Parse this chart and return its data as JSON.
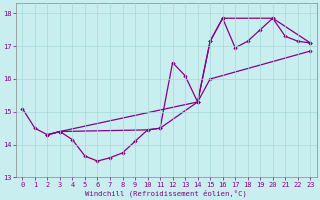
{
  "xlabel": "Windchill (Refroidissement éolien,°C)",
  "background_color": "#c8eef0",
  "line_color": "#880088",
  "xlim": [
    -0.5,
    23.5
  ],
  "ylim": [
    13.0,
    18.3
  ],
  "yticks": [
    13,
    14,
    15,
    16,
    17,
    18
  ],
  "xticks": [
    0,
    1,
    2,
    3,
    4,
    5,
    6,
    7,
    8,
    9,
    10,
    11,
    12,
    13,
    14,
    15,
    16,
    17,
    18,
    19,
    20,
    21,
    22,
    23
  ],
  "curve_main_x": [
    0,
    1,
    2,
    3,
    4,
    5,
    6,
    7,
    8,
    9,
    10,
    11,
    12,
    13,
    14,
    15,
    16,
    17,
    18,
    19,
    20,
    21,
    22,
    23
  ],
  "curve_main_y": [
    15.1,
    14.5,
    14.3,
    14.4,
    14.15,
    13.65,
    13.5,
    13.6,
    13.75,
    14.1,
    14.45,
    14.5,
    16.5,
    16.1,
    15.3,
    17.15,
    17.85,
    16.95,
    17.15,
    17.5,
    17.85,
    17.3,
    17.15,
    17.1
  ],
  "curve_envelope_x": [
    2,
    3,
    10,
    11,
    14,
    15,
    16,
    20,
    23
  ],
  "curve_envelope_y": [
    14.3,
    14.4,
    14.45,
    14.5,
    15.3,
    17.15,
    17.85,
    17.85,
    17.1
  ],
  "curve_diag_x": [
    2,
    3,
    14,
    15,
    23
  ],
  "curve_diag_y": [
    14.3,
    14.4,
    15.3,
    16.0,
    16.85
  ],
  "grid_color": "#a8d8d8",
  "grid_linewidth": 0.5
}
